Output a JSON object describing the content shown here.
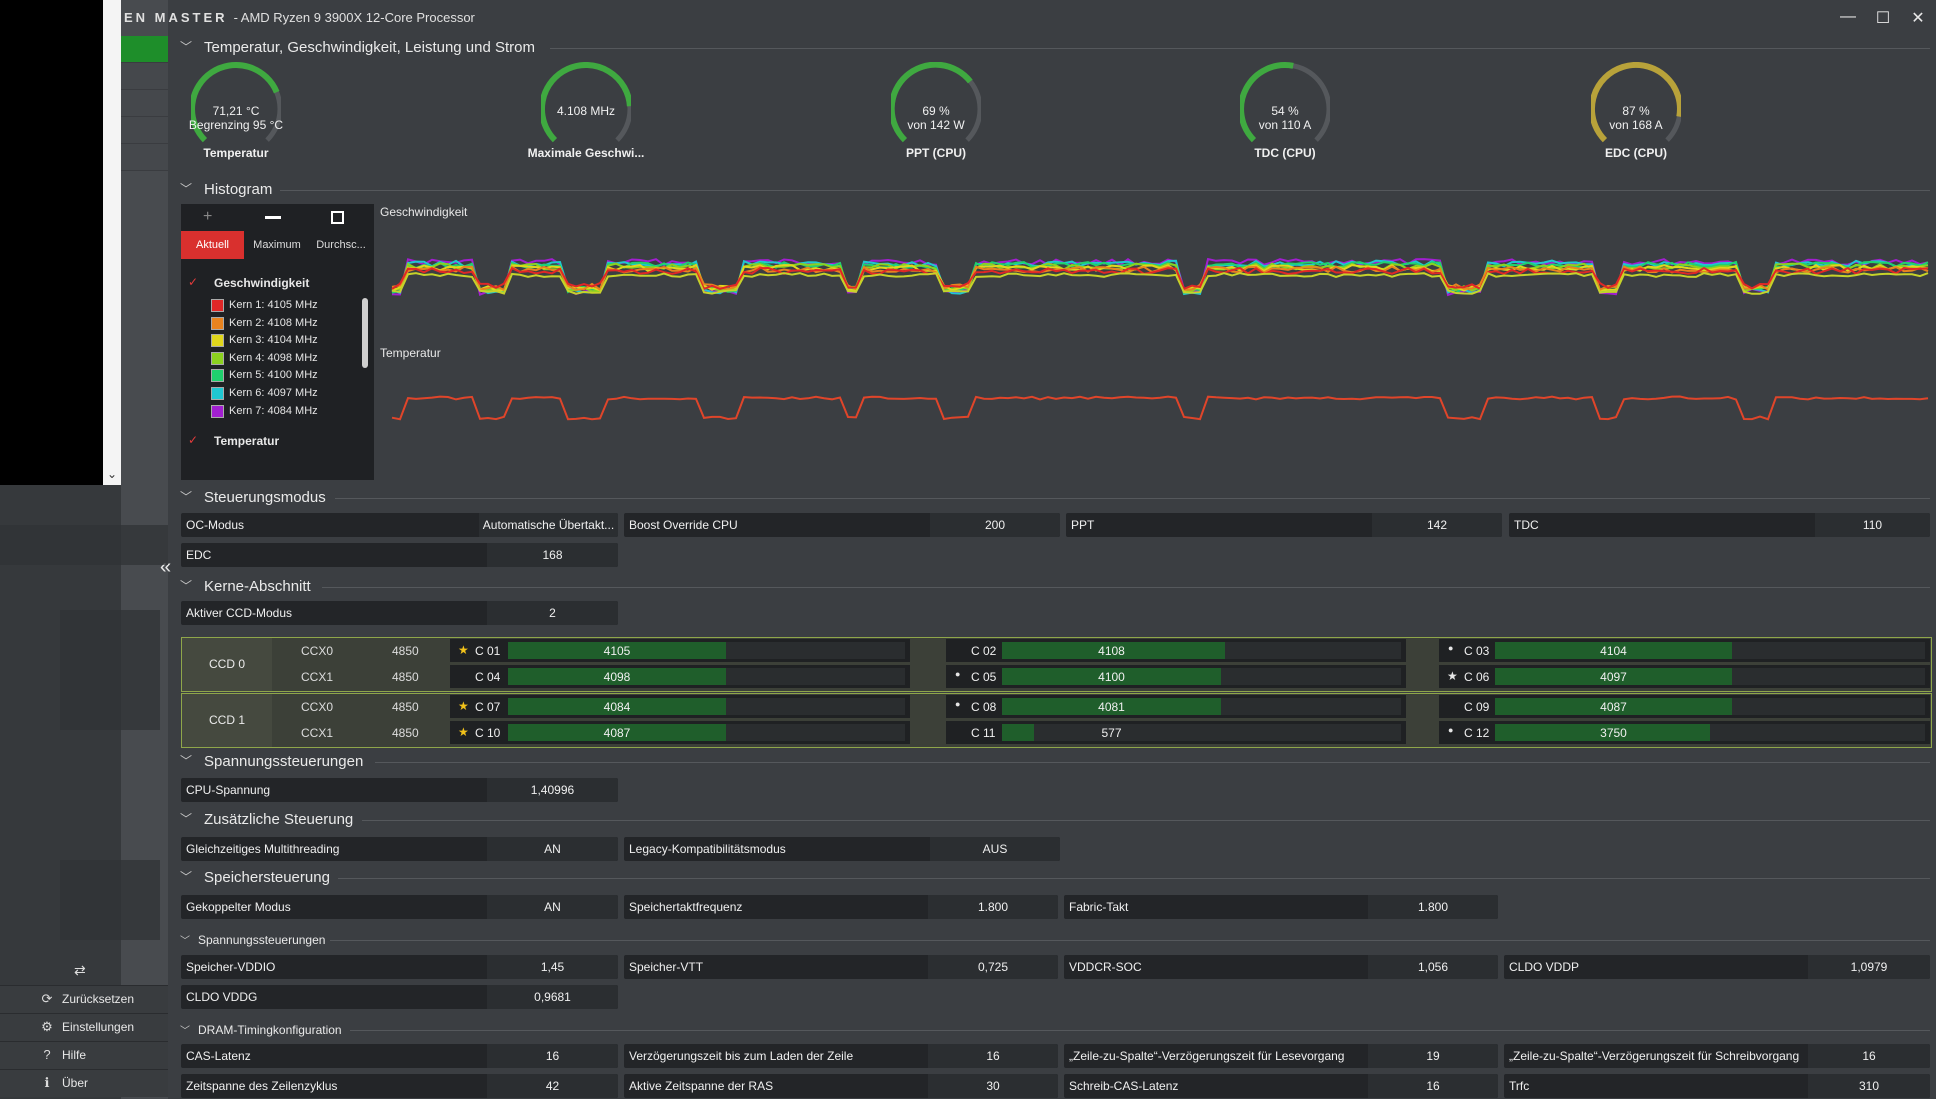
{
  "window": {
    "app_name": "EN MASTER",
    "processor": "-  AMD Ryzen 9 3900X 12-Core Processor",
    "minimize": "—",
    "maximize": "☐",
    "close": "✕"
  },
  "sidebar": {
    "collapse_glyph": "«",
    "nav": [
      {
        "icon": "reset-icon",
        "label": "Zurücksetzen"
      },
      {
        "icon": "settings-icon",
        "label": "Einstellungen"
      },
      {
        "icon": "help-icon",
        "label": "Hilfe"
      },
      {
        "icon": "info-icon",
        "label": "Über"
      }
    ]
  },
  "sections": {
    "temp": "Temperatur, Geschwindigkeit, Leistung und Strom",
    "histogram": "Histogram",
    "control_mode": "Steuerungsmodus",
    "cores": "Kerne-Abschnitt",
    "voltage": "Spannungssteuerungen",
    "extra": "Zusätzliche Steuerung",
    "memory": "Speichersteuerung",
    "mem_voltage": "Spannungssteuerungen",
    "dram_timing": "DRAM-Timingkonfiguration"
  },
  "gauges": [
    {
      "line1": "71,21 °C",
      "line2": "Begrenzing  95 °C",
      "label": "Temperatur",
      "fraction": 0.75,
      "color": "#3fa940"
    },
    {
      "line1": "4.108  MHz",
      "line2": "",
      "label": "Maximale Geschwi...",
      "fraction": 0.82,
      "color": "#3fa940"
    },
    {
      "line1": "69 %",
      "line2": "von  142 W",
      "label": "PPT (CPU)",
      "fraction": 0.69,
      "color": "#3fa940"
    },
    {
      "line1": "54 %",
      "line2": "von  110 A",
      "label": "TDC (CPU)",
      "fraction": 0.54,
      "color": "#3fa940"
    },
    {
      "line1": "87 %",
      "line2": "von  168 A",
      "label": "EDC (CPU)",
      "fraction": 0.87,
      "color": "#b8a23a"
    }
  ],
  "histogram": {
    "tabs": [
      "Aktuell",
      "Maximum",
      "Durchsc..."
    ],
    "group_speed": "Geschwindigkeit",
    "group_temp": "Temperatur",
    "legend": [
      {
        "label": "Kern 1: 4105 MHz",
        "color": "#e02727"
      },
      {
        "label": "Kern 2: 4108 MHz",
        "color": "#e8831f"
      },
      {
        "label": "Kern 3: 4104 MHz",
        "color": "#e0d61c"
      },
      {
        "label": "Kern 4: 4098 MHz",
        "color": "#8cd11f"
      },
      {
        "label": "Kern 5: 4100 MHz",
        "color": "#1fd16e"
      },
      {
        "label": "Kern 6: 4097 MHz",
        "color": "#1fc7d1"
      },
      {
        "label": "Kern 7: 4084 MHz",
        "color": "#a21fd1"
      }
    ],
    "chart_speed_title": "Geschwindigkeit",
    "chart_temp_title": "Temperatur"
  },
  "control": {
    "oc_mode_label": "OC-Modus",
    "oc_mode_value": "Automatische Übertakt...",
    "boost_label": "Boost Override CPU",
    "boost_value": "200",
    "ppt_label": "PPT",
    "ppt_value": "142",
    "tdc_label": "TDC",
    "tdc_value": "110",
    "edc_label": "EDC",
    "edc_value": "168"
  },
  "cores": {
    "active_ccd_label": "Aktiver CCD-Modus",
    "active_ccd_value": "2",
    "ccds": [
      {
        "name": "CCD 0",
        "rows": [
          {
            "ccx": "CCX0",
            "freq": "4850",
            "cores": [
              {
                "name": "C 01",
                "mark": "★",
                "value": "4105",
                "fill": 0.55
              },
              {
                "name": "C 02",
                "mark": "",
                "value": "4108",
                "fill": 0.56
              },
              {
                "name": "C 03",
                "mark": "●",
                "value": "4104",
                "fill": 0.55
              }
            ]
          },
          {
            "ccx": "CCX1",
            "freq": "4850",
            "cores": [
              {
                "name": "C 04",
                "mark": "",
                "value": "4098",
                "fill": 0.55
              },
              {
                "name": "C 05",
                "mark": "●",
                "value": "4100",
                "fill": 0.55
              },
              {
                "name": "C 06",
                "mark": "★",
                "value": "4097",
                "fill": 0.55
              }
            ]
          }
        ]
      },
      {
        "name": "CCD 1",
        "rows": [
          {
            "ccx": "CCX0",
            "freq": "4850",
            "cores": [
              {
                "name": "C 07",
                "mark": "★",
                "value": "4084",
                "fill": 0.55
              },
              {
                "name": "C 08",
                "mark": "●",
                "value": "4081",
                "fill": 0.55
              },
              {
                "name": "C 09",
                "mark": "",
                "value": "4087",
                "fill": 0.55
              }
            ]
          },
          {
            "ccx": "CCX1",
            "freq": "4850",
            "cores": [
              {
                "name": "C 10",
                "mark": "★",
                "value": "4087",
                "fill": 0.55
              },
              {
                "name": "C 11",
                "mark": "",
                "value": "577",
                "fill": 0.08
              },
              {
                "name": "C 12",
                "mark": "●",
                "value": "3750",
                "fill": 0.5
              }
            ]
          }
        ]
      }
    ]
  },
  "voltage": {
    "cpu_label": "CPU-Spannung",
    "cpu_value": "1,40996"
  },
  "extra": {
    "smt_label": "Gleichzeitiges Multithreading",
    "smt_value": "AN",
    "legacy_label": "Legacy-Kompatibilitätsmodus",
    "legacy_value": "AUS"
  },
  "memory": {
    "coupled_label": "Gekoppelter Modus",
    "coupled_value": "AN",
    "freq_label": "Speichertaktfrequenz",
    "freq_value": "1.800",
    "fabric_label": "Fabric-Takt",
    "fabric_value": "1.800"
  },
  "mem_voltage": {
    "vddio_label": "Speicher-VDDIO",
    "vddio_value": "1,45",
    "vtt_label": "Speicher-VTT",
    "vtt_value": "0,725",
    "soc_label": "VDDCR-SOC",
    "soc_value": "1,056",
    "cldo_vddp_label": "CLDO VDDP",
    "cldo_vddp_value": "1,0979",
    "cldo_vddg_label": "CLDO VDDG",
    "cldo_vddg_value": "0,9681"
  },
  "dram": {
    "cas_label": "CAS-Latenz",
    "cas_value": "16",
    "rcd_label": "Verzögerungszeit bis zum Laden der Zeile",
    "rcd_value": "16",
    "rcdrd_label": "„Zeile-zu-Spalte“-Verzögerungszeit für Lesevorgang",
    "rcdrd_value": "19",
    "rcdwr_label": "„Zeile-zu-Spalte“-Verzögerungszeit für Schreibvorgang",
    "rcdwr_value": "16",
    "rc_label": "Zeitspanne des Zeilenzyklus",
    "rc_value": "42",
    "ras_label": "Aktive Zeitspanne der RAS",
    "ras_value": "30",
    "cwl_label": "Schreib-CAS-Latenz",
    "cwl_value": "16",
    "rfc_label": "Trfc",
    "rfc_value": "310"
  }
}
